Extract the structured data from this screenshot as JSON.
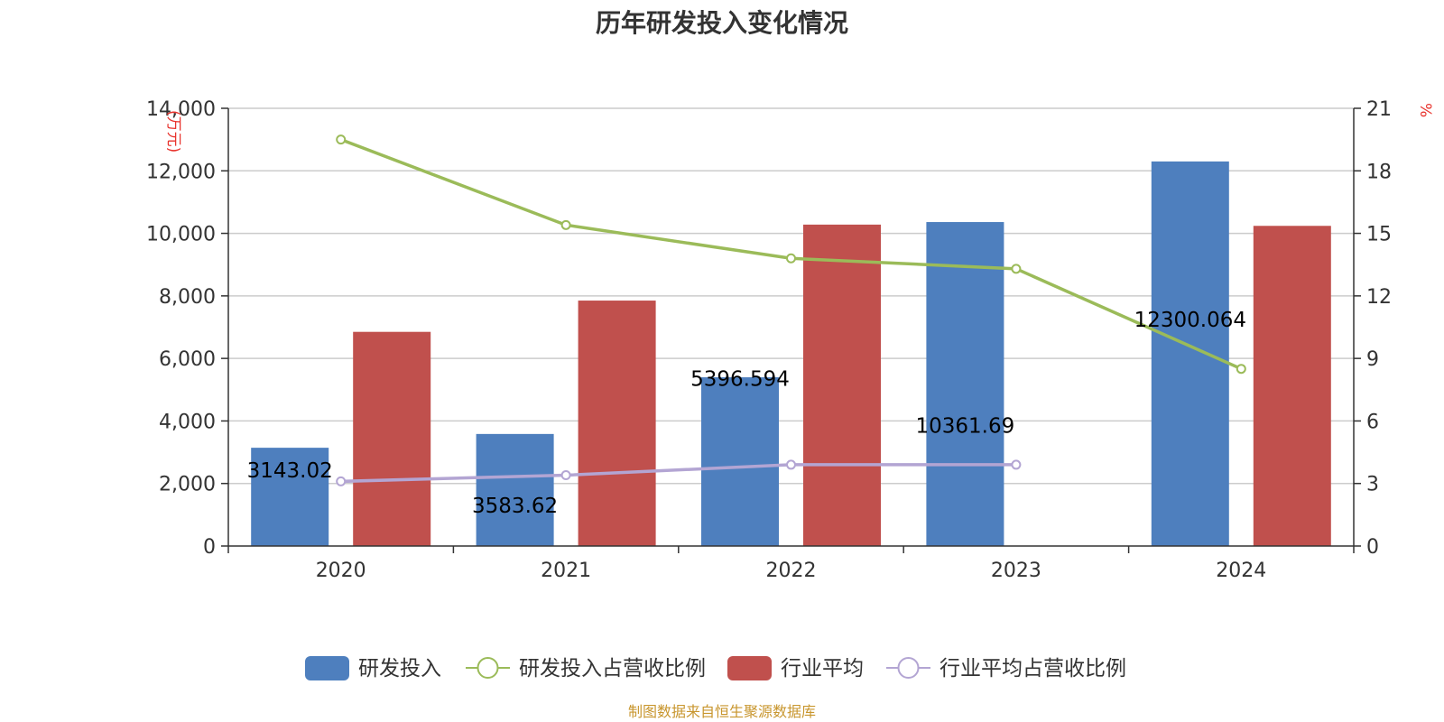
{
  "title": "历年研发投入变化情况",
  "source_note": "制图数据来自恒生聚源数据库",
  "chart_data": {
    "type": "bar",
    "title": "历年研发投入变化情况",
    "categories": [
      "2020",
      "2021",
      "2022",
      "2023",
      "2024"
    ],
    "y_left": {
      "unit": "万元",
      "ylim": [
        0,
        14000
      ],
      "ticks": [
        0,
        2000,
        4000,
        6000,
        8000,
        10000,
        12000,
        14000
      ],
      "tick_labels": [
        "0",
        "2,000",
        "4,000",
        "6,000",
        "8,000",
        "10,000",
        "12,000",
        "14,000"
      ]
    },
    "y_right": {
      "unit": "%",
      "ylim": [
        0,
        21
      ],
      "ticks": [
        0,
        3,
        6,
        9,
        12,
        15,
        18,
        21
      ],
      "tick_labels": [
        "0",
        "3",
        "6",
        "9",
        "12",
        "15",
        "18",
        "21"
      ]
    },
    "series": [
      {
        "name": "研发投入",
        "kind": "bar",
        "axis": "left",
        "color": "#4e7fbe",
        "values": [
          3143.02,
          3583.62,
          5396.594,
          10361.69,
          12300.064
        ],
        "labels": [
          "3143.02",
          "3583.62",
          "5396.594",
          "10361.69",
          "12300.064"
        ]
      },
      {
        "name": "研发投入占营收比例",
        "kind": "line",
        "axis": "right",
        "color": "#9bbb59",
        "values": [
          19.5,
          15.4,
          13.8,
          13.3,
          8.5
        ]
      },
      {
        "name": "行业平均",
        "kind": "bar",
        "axis": "left",
        "color": "#c0504d",
        "values": [
          6850,
          7850,
          10280,
          null,
          10240
        ]
      },
      {
        "name": "行业平均占营收比例",
        "kind": "line",
        "axis": "right",
        "color": "#b3a5d3",
        "values": [
          3.1,
          3.4,
          3.9,
          3.9,
          null
        ]
      }
    ],
    "grid": true,
    "legend": "bottom"
  }
}
